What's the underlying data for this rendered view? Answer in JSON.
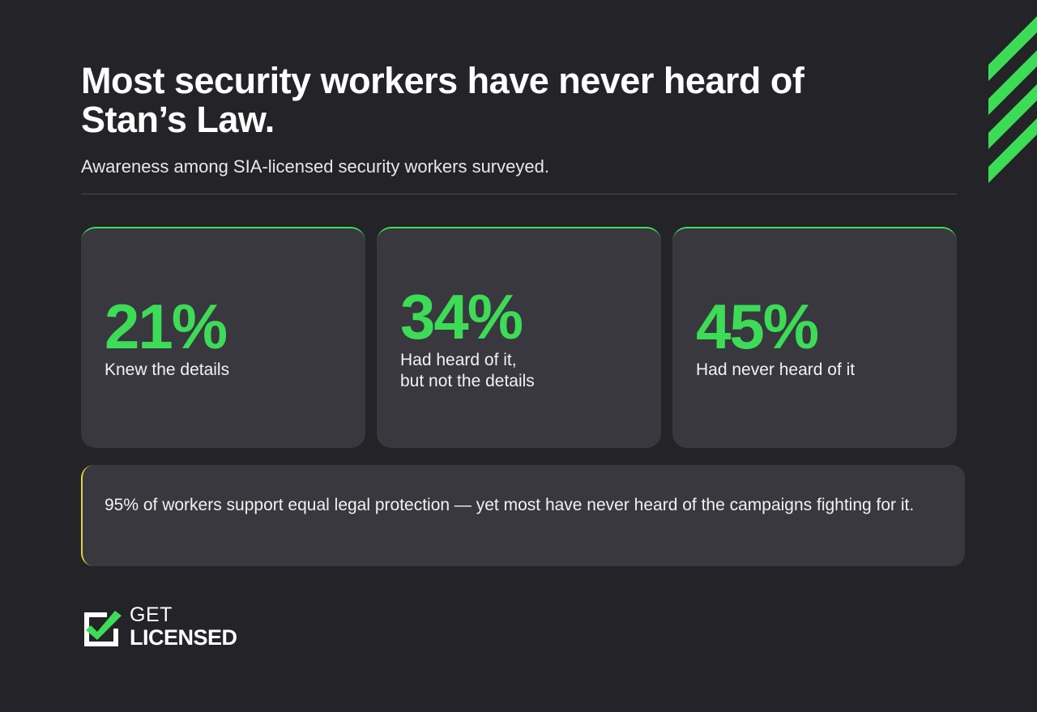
{
  "header": {
    "title": "Most security workers have never heard of Stan’s Law.",
    "subtitle": "Awareness among SIA-licensed security workers surveyed."
  },
  "stats": [
    {
      "value": "21%",
      "label": "Knew the details"
    },
    {
      "value": "34%",
      "label_line1": "Had heard of it,",
      "label_line2": "but not the details"
    },
    {
      "value": "45%",
      "label": "Had never heard of it"
    }
  ],
  "callout": {
    "text": "95% of workers support equal legal protection — yet most have never heard of the campaigns fighting for it."
  },
  "logo": {
    "line1": "GET",
    "line2": "LICENSED",
    "icon": "checkbox-check-icon"
  },
  "colors": {
    "background": "#232328",
    "card": "#38383e",
    "accent_green": "#3ddc57",
    "accent_yellow": "#e6d23a"
  }
}
